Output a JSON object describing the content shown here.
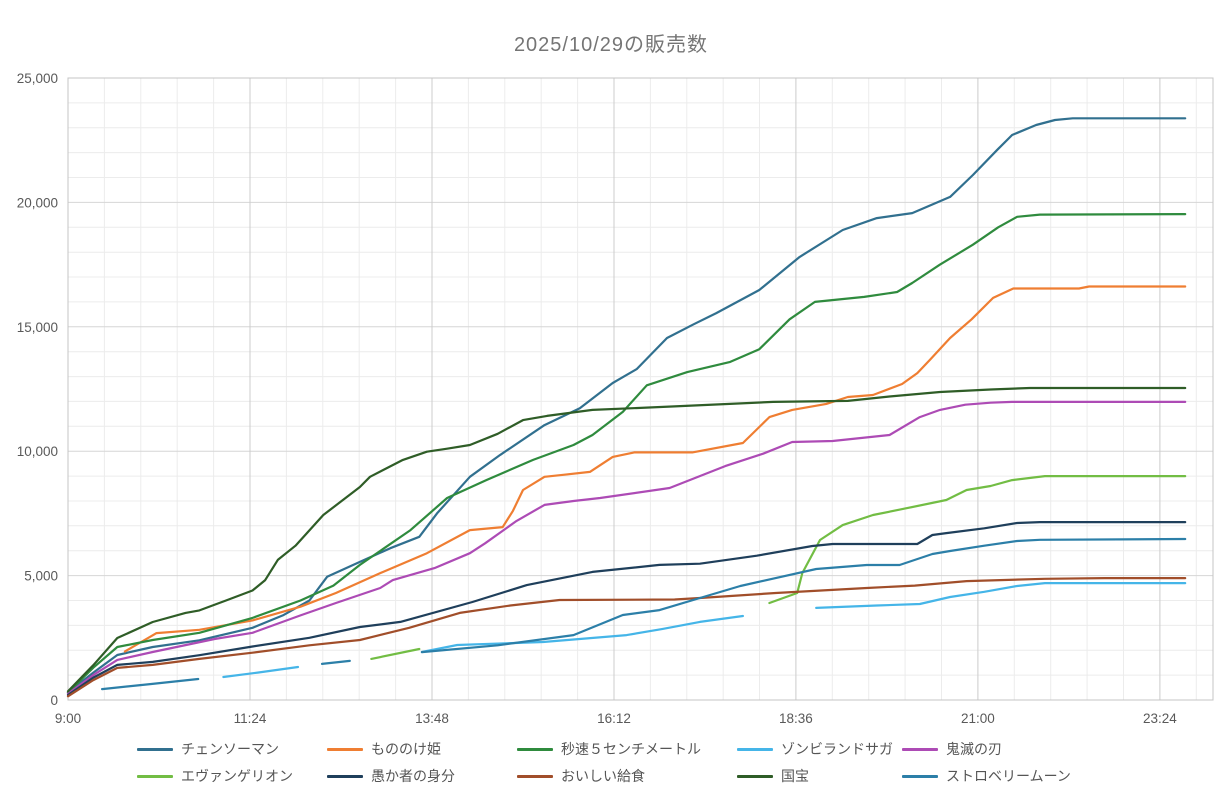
{
  "chart_data": {
    "type": "line",
    "title": "2025/10/29の販売数",
    "x_axis": {
      "unit": "time-of-day",
      "labels": [
        "9:00",
        "11:24",
        "13:48",
        "16:12",
        "18:36",
        "21:00",
        "23:24"
      ],
      "tick_minutes": [
        0,
        144,
        288,
        432,
        576,
        720,
        864
      ],
      "range_minutes": [
        0,
        906
      ],
      "minor_step_minutes": 28.8
    },
    "y_axis": {
      "min": 0,
      "max": 25000,
      "major_step": 5000,
      "minor_step": 1000,
      "tick_labels": [
        "0",
        "5,000",
        "10,000",
        "15,000",
        "20,000",
        "25,000"
      ]
    },
    "grid": true,
    "legend_position": "bottom",
    "axis_label_color": "#595959",
    "title_color": "#757575",
    "series": [
      {
        "name": "チェンソーマン",
        "color": "#31708f",
        "segments": [
          [
            [
              0,
              300
            ],
            [
              20,
              1100
            ],
            [
              39,
              1810
            ],
            [
              67,
              2130
            ],
            [
              104,
              2400
            ],
            [
              146,
              2900
            ],
            [
              170,
              3400
            ],
            [
              191,
              4000
            ],
            [
              205,
              4950
            ],
            [
              231,
              5550
            ],
            [
              255,
              6100
            ],
            [
              278,
              6560
            ],
            [
              292,
              7500
            ],
            [
              318,
              8970
            ],
            [
              342,
              9850
            ],
            [
              377,
              11050
            ],
            [
              405,
              11730
            ],
            [
              431,
              12740
            ],
            [
              450,
              13300
            ],
            [
              474,
              14550
            ],
            [
              495,
              15100
            ],
            [
              513,
              15550
            ],
            [
              547,
              16480
            ],
            [
              579,
              17810
            ],
            [
              613,
              18890
            ],
            [
              640,
              19370
            ],
            [
              668,
              19570
            ],
            [
              698,
              20220
            ],
            [
              716,
              21100
            ],
            [
              735,
              22100
            ],
            [
              747,
              22710
            ],
            [
              766,
              23110
            ],
            [
              781,
              23310
            ],
            [
              795,
              23380
            ],
            [
              884,
              23380
            ]
          ]
        ]
      },
      {
        "name": "もののけ姫",
        "color": "#ef7e32",
        "segments": [
          [
            [
              45,
              1950
            ],
            [
              70,
              2690
            ],
            [
              104,
              2820
            ],
            [
              146,
              3200
            ],
            [
              184,
              3750
            ],
            [
              212,
              4300
            ],
            [
              247,
              5100
            ],
            [
              284,
              5900
            ],
            [
              318,
              6830
            ],
            [
              344,
              6950
            ],
            [
              352,
              7600
            ],
            [
              360,
              8440
            ],
            [
              377,
              8970
            ],
            [
              392,
              9050
            ],
            [
              413,
              9170
            ],
            [
              431,
              9770
            ],
            [
              448,
              9950
            ],
            [
              494,
              9950
            ],
            [
              534,
              10330
            ],
            [
              555,
              11370
            ],
            [
              573,
              11660
            ],
            [
              600,
              11900
            ],
            [
              617,
              12180
            ],
            [
              637,
              12260
            ],
            [
              660,
              12700
            ],
            [
              672,
              13140
            ],
            [
              682,
              13670
            ],
            [
              698,
              14550
            ],
            [
              715,
              15300
            ],
            [
              732,
              16160
            ],
            [
              748,
              16540
            ],
            [
              800,
              16540
            ],
            [
              808,
              16620
            ],
            [
              884,
              16620
            ]
          ]
        ]
      },
      {
        "name": "秒速５センチメートル",
        "color": "#2f8b3e",
        "segments": [
          [
            [
              0,
              300
            ],
            [
              20,
              1300
            ],
            [
              39,
              2130
            ],
            [
              67,
              2410
            ],
            [
              104,
              2700
            ],
            [
              146,
              3300
            ],
            [
              184,
              4000
            ],
            [
              210,
              4600
            ],
            [
              231,
              5430
            ],
            [
              271,
              6830
            ],
            [
              300,
              8120
            ],
            [
              331,
              8840
            ],
            [
              368,
              9650
            ],
            [
              400,
              10250
            ],
            [
              415,
              10650
            ],
            [
              439,
              11580
            ],
            [
              458,
              12650
            ],
            [
              490,
              13180
            ],
            [
              524,
              13590
            ],
            [
              547,
              14100
            ],
            [
              571,
              15300
            ],
            [
              591,
              16000
            ],
            [
              630,
              16200
            ],
            [
              656,
              16400
            ],
            [
              668,
              16760
            ],
            [
              690,
              17500
            ],
            [
              716,
              18300
            ],
            [
              736,
              19000
            ],
            [
              751,
              19420
            ],
            [
              769,
              19510
            ],
            [
              884,
              19530
            ]
          ]
        ]
      },
      {
        "name": "ゾンビランドサガ",
        "color": "#45b5e8",
        "segments": [
          [
            [
              123,
              925
            ],
            [
              150,
              1100
            ],
            [
              182,
              1325
            ]
          ],
          [
            [
              280,
              1930
            ],
            [
              308,
              2210
            ],
            [
              376,
              2330
            ],
            [
              442,
              2610
            ],
            [
              470,
              2850
            ],
            [
              500,
              3140
            ],
            [
              534,
              3375
            ]
          ],
          [
            [
              592,
              3700
            ],
            [
              640,
              3800
            ],
            [
              674,
              3860
            ],
            [
              698,
              4140
            ],
            [
              725,
              4350
            ],
            [
              751,
              4580
            ],
            [
              773,
              4700
            ],
            [
              884,
              4700
            ]
          ]
        ]
      },
      {
        "name": "鬼滅の刃",
        "color": "#ad4bb5",
        "segments": [
          [
            [
              0,
              250
            ],
            [
              20,
              1000
            ],
            [
              39,
              1610
            ],
            [
              67,
              1930
            ],
            [
              116,
              2450
            ],
            [
              146,
              2700
            ],
            [
              184,
              3400
            ],
            [
              212,
              3900
            ],
            [
              247,
              4500
            ],
            [
              257,
              4820
            ],
            [
              290,
              5300
            ],
            [
              318,
              5900
            ],
            [
              330,
              6300
            ],
            [
              355,
              7200
            ],
            [
              377,
              7840
            ],
            [
              400,
              8000
            ],
            [
              421,
              8120
            ],
            [
              476,
              8520
            ],
            [
              520,
              9400
            ],
            [
              550,
              9900
            ],
            [
              573,
              10370
            ],
            [
              605,
              10410
            ],
            [
              650,
              10650
            ],
            [
              674,
              11370
            ],
            [
              690,
              11660
            ],
            [
              710,
              11870
            ],
            [
              730,
              11950
            ],
            [
              747,
              11980
            ],
            [
              884,
              11980
            ]
          ]
        ]
      },
      {
        "name": "エヴァンゲリオン",
        "color": "#72bd44",
        "segments": [
          [
            [
              240,
              1650
            ],
            [
              278,
              2050
            ]
          ],
          [
            [
              555,
              3900
            ],
            [
              577,
              4300
            ],
            [
              581,
              5100
            ],
            [
              595,
              6430
            ],
            [
              613,
              7030
            ],
            [
              637,
              7435
            ],
            [
              664,
              7715
            ],
            [
              695,
              8040
            ],
            [
              711,
              8440
            ],
            [
              730,
              8600
            ],
            [
              747,
              8840
            ],
            [
              773,
              9000
            ],
            [
              884,
              9000
            ]
          ]
        ]
      },
      {
        "name": "愚か者の身分",
        "color": "#1f3f5b",
        "segments": [
          [
            [
              0,
              200
            ],
            [
              20,
              900
            ],
            [
              39,
              1410
            ],
            [
              67,
              1530
            ],
            [
              104,
              1800
            ],
            [
              146,
              2150
            ],
            [
              191,
              2500
            ],
            [
              231,
              2935
            ],
            [
              263,
              3140
            ],
            [
              320,
              3940
            ],
            [
              363,
              4620
            ],
            [
              415,
              5150
            ],
            [
              468,
              5430
            ],
            [
              500,
              5480
            ],
            [
              545,
              5800
            ],
            [
              589,
              6190
            ],
            [
              605,
              6270
            ],
            [
              672,
              6270
            ],
            [
              684,
              6630
            ],
            [
              695,
              6710
            ],
            [
              725,
              6900
            ],
            [
              751,
              7115
            ],
            [
              769,
              7150
            ],
            [
              884,
              7150
            ]
          ]
        ]
      },
      {
        "name": "おいしい給食",
        "color": "#a14e2a",
        "segments": [
          [
            [
              0,
              150
            ],
            [
              20,
              800
            ],
            [
              39,
              1290
            ],
            [
              67,
              1410
            ],
            [
              104,
              1650
            ],
            [
              146,
              1900
            ],
            [
              191,
              2200
            ],
            [
              231,
              2410
            ],
            [
              270,
              2900
            ],
            [
              310,
              3500
            ],
            [
              350,
              3800
            ],
            [
              389,
              4020
            ],
            [
              480,
              4040
            ],
            [
              500,
              4100
            ],
            [
              560,
              4300
            ],
            [
              632,
              4500
            ],
            [
              670,
              4600
            ],
            [
              711,
              4780
            ],
            [
              773,
              4870
            ],
            [
              820,
              4900
            ],
            [
              884,
              4900
            ]
          ]
        ]
      },
      {
        "name": "国宝",
        "color": "#2f5d27",
        "segments": [
          [
            [
              0,
              350
            ],
            [
              20,
              1400
            ],
            [
              39,
              2490
            ],
            [
              67,
              3135
            ],
            [
              93,
              3500
            ],
            [
              104,
              3600
            ],
            [
              125,
              4000
            ],
            [
              146,
              4400
            ],
            [
              156,
              4820
            ],
            [
              166,
              5630
            ],
            [
              180,
              6200
            ],
            [
              202,
              7435
            ],
            [
              231,
              8560
            ],
            [
              239,
              8970
            ],
            [
              265,
              9650
            ],
            [
              284,
              9980
            ],
            [
              300,
              10100
            ],
            [
              318,
              10250
            ],
            [
              340,
              10700
            ],
            [
              360,
              11250
            ],
            [
              379,
              11420
            ],
            [
              415,
              11660
            ],
            [
              480,
              11800
            ],
            [
              558,
              11980
            ],
            [
              617,
              12020
            ],
            [
              650,
              12200
            ],
            [
              690,
              12380
            ],
            [
              730,
              12480
            ],
            [
              761,
              12540
            ],
            [
              884,
              12540
            ]
          ]
        ]
      },
      {
        "name": "ストロベリームーン",
        "color": "#2c7fa8",
        "segments": [
          [
            [
              27,
              440
            ],
            [
              65,
              640
            ],
            [
              103,
              845
            ]
          ],
          [
            [
              201,
              1450
            ],
            [
              223,
              1570
            ]
          ],
          [
            [
              280,
              1925
            ],
            [
              340,
              2200
            ],
            [
              400,
              2610
            ],
            [
              439,
              3415
            ],
            [
              468,
              3615
            ],
            [
              500,
              4100
            ],
            [
              532,
              4580
            ],
            [
              560,
              4900
            ],
            [
              592,
              5265
            ],
            [
              632,
              5425
            ],
            [
              658,
              5425
            ],
            [
              684,
              5870
            ],
            [
              698,
              5990
            ],
            [
              725,
              6200
            ],
            [
              751,
              6390
            ],
            [
              769,
              6440
            ],
            [
              884,
              6470
            ]
          ]
        ]
      }
    ]
  }
}
